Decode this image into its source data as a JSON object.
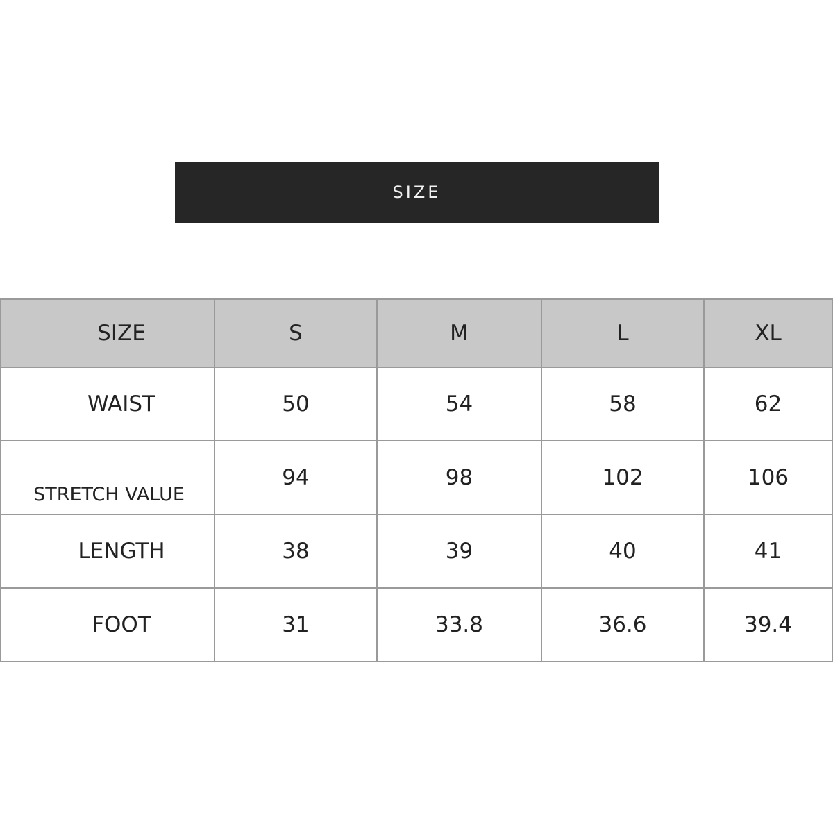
{
  "banner": {
    "title": "SIZE"
  },
  "table": {
    "header": [
      "SIZE",
      "S",
      "M",
      "L",
      "XL"
    ],
    "rows": [
      {
        "label": "WAIST",
        "values": [
          "50",
          "54",
          "58",
          "62"
        ]
      },
      {
        "label": "STRETCH VALUE",
        "values": [
          "94",
          "98",
          "102",
          "106"
        ]
      },
      {
        "label": "LENGTH",
        "values": [
          "38",
          "39",
          "40",
          "41"
        ]
      },
      {
        "label": "FOOT",
        "values": [
          "31",
          "33.8",
          "36.6",
          "39.4"
        ]
      }
    ]
  },
  "colors": {
    "banner": "#262626",
    "header_row": "#c8c8c8",
    "border": "#9a9a9a"
  }
}
